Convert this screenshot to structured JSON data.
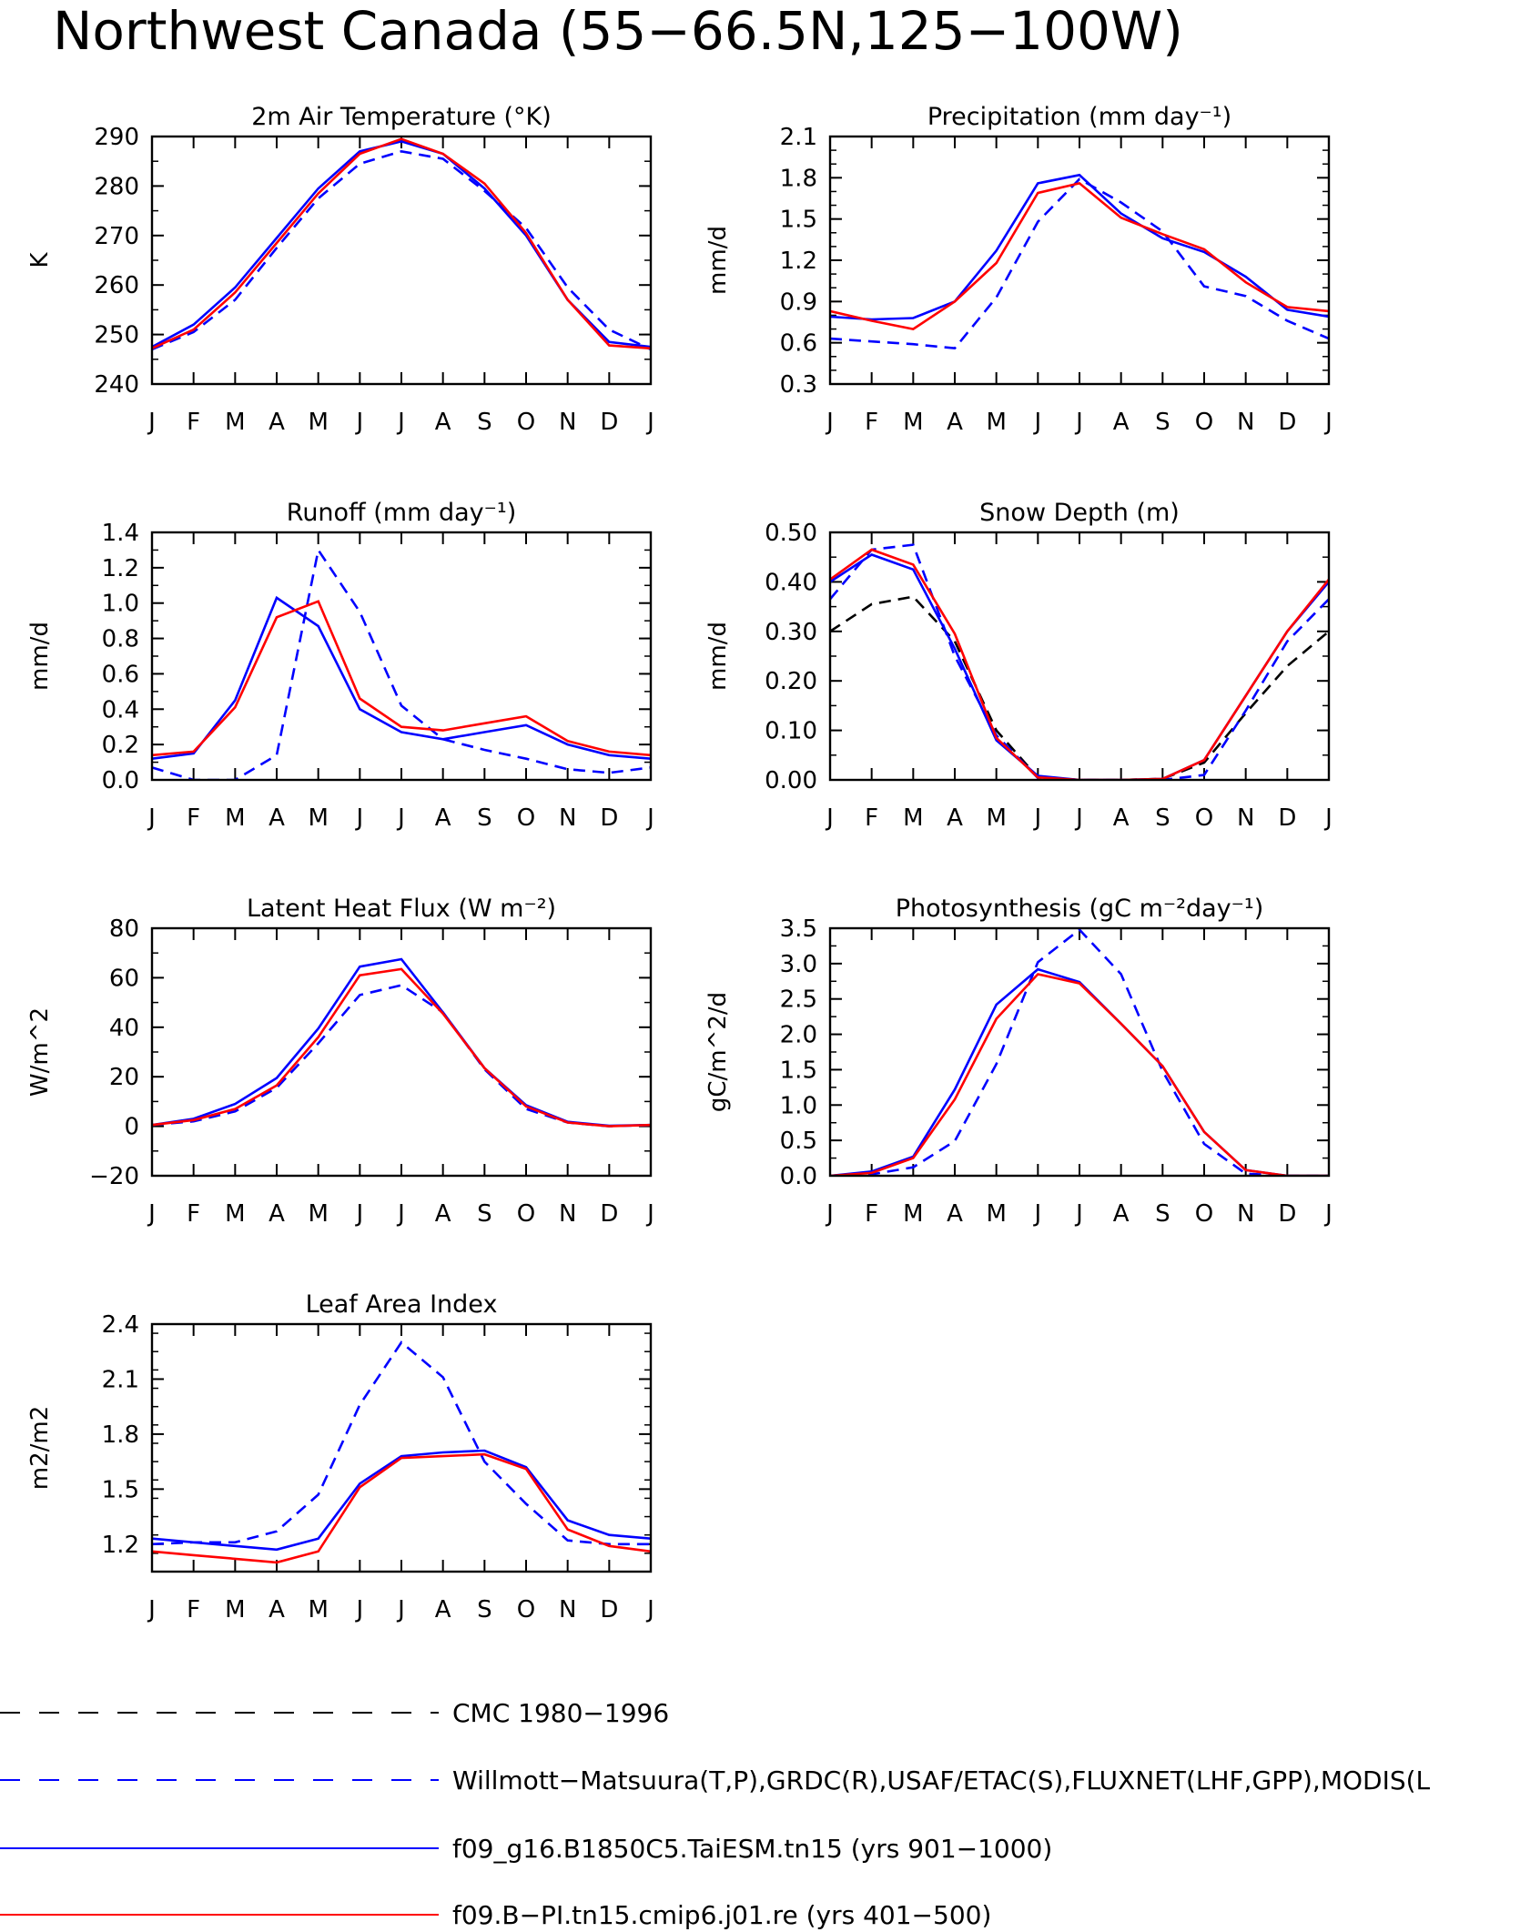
{
  "title": "Northwest Canada (55−66.5N,125−100W)",
  "months": [
    "J",
    "F",
    "M",
    "A",
    "M",
    "J",
    "J",
    "A",
    "S",
    "O",
    "N",
    "D",
    "J"
  ],
  "colors": {
    "red": "#ff0000",
    "blue": "#0000ff",
    "black": "#000000"
  },
  "chart_data": [
    {
      "type": "line",
      "title": "2m Air Temperature (°K)",
      "ylabel": "K",
      "ylim": [
        240,
        290
      ],
      "yticks": [
        "240",
        "250",
        "260",
        "270",
        "280",
        "290"
      ],
      "yminor": 2,
      "series": [
        {
          "style": "solid-red",
          "values": [
            247.2,
            251.0,
            258.5,
            268.5,
            278.5,
            286.5,
            289.5,
            286.5,
            280.5,
            270.5,
            257.0,
            247.8,
            247.2
          ]
        },
        {
          "style": "solid-blue",
          "values": [
            247.5,
            252.0,
            259.5,
            269.5,
            279.5,
            287.0,
            289.0,
            286.5,
            279.5,
            270.0,
            257.0,
            248.5,
            247.5
          ]
        },
        {
          "style": "dashed-blue",
          "values": [
            247.0,
            250.5,
            257.0,
            267.5,
            277.5,
            284.5,
            287.0,
            285.5,
            279.0,
            271.5,
            259.5,
            251.0,
            247.0
          ]
        }
      ]
    },
    {
      "type": "line",
      "title": "Precipitation (mm day⁻¹)",
      "ylabel": "mm/d",
      "ylim": [
        0.3,
        2.1
      ],
      "yticks": [
        "0.3",
        "0.6",
        "0.9",
        "1.2",
        "1.5",
        "1.8",
        "2.1"
      ],
      "yminor": 3,
      "series": [
        {
          "style": "solid-red",
          "values": [
            0.83,
            0.76,
            0.7,
            0.9,
            1.18,
            1.69,
            1.76,
            1.51,
            1.39,
            1.28,
            1.04,
            0.86,
            0.83
          ]
        },
        {
          "style": "solid-blue",
          "values": [
            0.79,
            0.77,
            0.78,
            0.9,
            1.27,
            1.76,
            1.82,
            1.54,
            1.36,
            1.26,
            1.08,
            0.84,
            0.79
          ]
        },
        {
          "style": "dashed-blue",
          "values": [
            0.63,
            0.61,
            0.59,
            0.56,
            0.93,
            1.48,
            1.79,
            1.62,
            1.41,
            1.01,
            0.94,
            0.76,
            0.63
          ]
        }
      ]
    },
    {
      "type": "line",
      "title": "Runoff (mm day⁻¹)",
      "ylabel": "mm/d",
      "ylim": [
        0,
        1.4
      ],
      "yticks": [
        "0.0",
        "0.2",
        "0.4",
        "0.6",
        "0.8",
        "1.0",
        "1.2",
        "1.4"
      ],
      "yminor": 2,
      "series": [
        {
          "style": "solid-red",
          "values": [
            0.14,
            0.16,
            0.41,
            0.92,
            1.01,
            0.46,
            0.3,
            0.28,
            0.32,
            0.36,
            0.22,
            0.16,
            0.14
          ]
        },
        {
          "style": "solid-blue",
          "values": [
            0.12,
            0.15,
            0.45,
            1.03,
            0.87,
            0.4,
            0.27,
            0.23,
            0.27,
            0.31,
            0.2,
            0.14,
            0.12
          ]
        },
        {
          "style": "dashed-blue",
          "values": [
            0.07,
            0.0,
            0.0,
            0.14,
            1.3,
            0.95,
            0.42,
            0.23,
            0.17,
            0.12,
            0.06,
            0.04,
            0.07
          ]
        }
      ]
    },
    {
      "type": "line",
      "title": "Snow Depth (m)",
      "ylabel": "mm/d",
      "ylim": [
        0,
        0.5
      ],
      "yticks": [
        "0.00",
        "0.10",
        "0.20",
        "0.30",
        "0.40",
        "0.50"
      ],
      "yminor": 2,
      "series": [
        {
          "style": "solid-red",
          "values": [
            0.405,
            0.465,
            0.435,
            0.295,
            0.085,
            0.005,
            0.0,
            0.0,
            0.002,
            0.04,
            0.17,
            0.3,
            0.405
          ]
        },
        {
          "style": "solid-blue",
          "values": [
            0.4,
            0.455,
            0.425,
            0.265,
            0.08,
            0.008,
            0.0,
            0.0,
            0.002,
            0.04,
            0.17,
            0.3,
            0.4
          ]
        },
        {
          "style": "dashed-blue",
          "values": [
            0.365,
            0.465,
            0.475,
            0.25,
            0.09,
            0.004,
            0.0,
            0.0,
            0.0,
            0.01,
            0.14,
            0.28,
            0.365
          ]
        },
        {
          "style": "dashed-black",
          "values": [
            0.3,
            0.355,
            0.37,
            0.28,
            0.1,
            0.005,
            0.0,
            0.0,
            0.002,
            0.035,
            0.135,
            0.23,
            0.3
          ]
        }
      ]
    },
    {
      "type": "line",
      "title": "Latent Heat Flux (W m⁻²)",
      "ylabel": "W/m^2",
      "ylim": [
        -20,
        80
      ],
      "yticks": [
        "−20",
        "0",
        "20",
        "40",
        "60",
        "80"
      ],
      "yminor": 2,
      "series": [
        {
          "style": "solid-red",
          "values": [
            0.5,
            2.5,
            7.0,
            16.5,
            36.0,
            61.0,
            63.5,
            45.5,
            23.5,
            8.0,
            1.5,
            0.0,
            0.5
          ]
        },
        {
          "style": "solid-blue",
          "values": [
            0.5,
            3.0,
            9.0,
            19.5,
            39.5,
            64.5,
            67.5,
            46.0,
            23.5,
            8.5,
            1.8,
            0.2,
            0.5
          ]
        },
        {
          "style": "dashed-blue",
          "values": [
            0.5,
            2.0,
            6.0,
            15.5,
            33.5,
            53.0,
            57.0,
            46.0,
            23.0,
            7.0,
            1.5,
            0.0,
            0.5
          ]
        }
      ]
    },
    {
      "type": "line",
      "title": "Photosynthesis (gC m⁻²day⁻¹)",
      "ylabel": "gC/m^2/d",
      "ylim": [
        0,
        3.5
      ],
      "yticks": [
        "0.0",
        "0.5",
        "1.0",
        "1.5",
        "2.0",
        "2.5",
        "3.0",
        "3.5"
      ],
      "yminor": 2,
      "series": [
        {
          "style": "solid-red",
          "values": [
            0.0,
            0.04,
            0.25,
            1.08,
            2.22,
            2.85,
            2.72,
            2.15,
            1.55,
            0.62,
            0.08,
            0.0,
            0.0
          ]
        },
        {
          "style": "solid-blue",
          "values": [
            0.0,
            0.06,
            0.27,
            1.22,
            2.42,
            2.92,
            2.74,
            2.15,
            1.55,
            0.62,
            0.08,
            0.0,
            0.0
          ]
        },
        {
          "style": "dashed-blue",
          "values": [
            0.0,
            0.02,
            0.12,
            0.49,
            1.58,
            3.02,
            3.48,
            2.85,
            1.48,
            0.45,
            0.03,
            0.0,
            0.0
          ]
        }
      ]
    },
    {
      "type": "line",
      "title": "Leaf Area Index",
      "ylabel": "m2/m2",
      "ylim": [
        1.05,
        2.4
      ],
      "yticks": [
        "1.2",
        "1.5",
        "1.8",
        "2.1",
        "2.4"
      ],
      "yminor": 3,
      "series": [
        {
          "style": "solid-red",
          "values": [
            1.16,
            1.14,
            1.12,
            1.1,
            1.16,
            1.51,
            1.67,
            1.68,
            1.69,
            1.61,
            1.28,
            1.19,
            1.16
          ]
        },
        {
          "style": "solid-blue",
          "values": [
            1.23,
            1.21,
            1.19,
            1.17,
            1.23,
            1.53,
            1.68,
            1.7,
            1.71,
            1.62,
            1.33,
            1.25,
            1.23
          ]
        },
        {
          "style": "dashed-blue",
          "values": [
            1.2,
            1.21,
            1.21,
            1.27,
            1.47,
            1.96,
            2.3,
            2.11,
            1.65,
            1.42,
            1.22,
            1.2,
            1.2
          ]
        }
      ]
    }
  ],
  "legend": [
    {
      "style": "dashed-black",
      "label": "CMC 1980−1996"
    },
    {
      "style": "dashed-blue",
      "label": "Willmott−Matsuura(T,P),GRDC(R),USAF/ETAC(S),FLUXNET(LHF,GPP),MODIS(L"
    },
    {
      "style": "solid-blue",
      "label": "f09_g16.B1850C5.TaiESM.tn15 (yrs 901−1000)"
    },
    {
      "style": "solid-red",
      "label": "f09.B−PI.tn15.cmip6.j01.re (yrs 401−500)"
    }
  ]
}
